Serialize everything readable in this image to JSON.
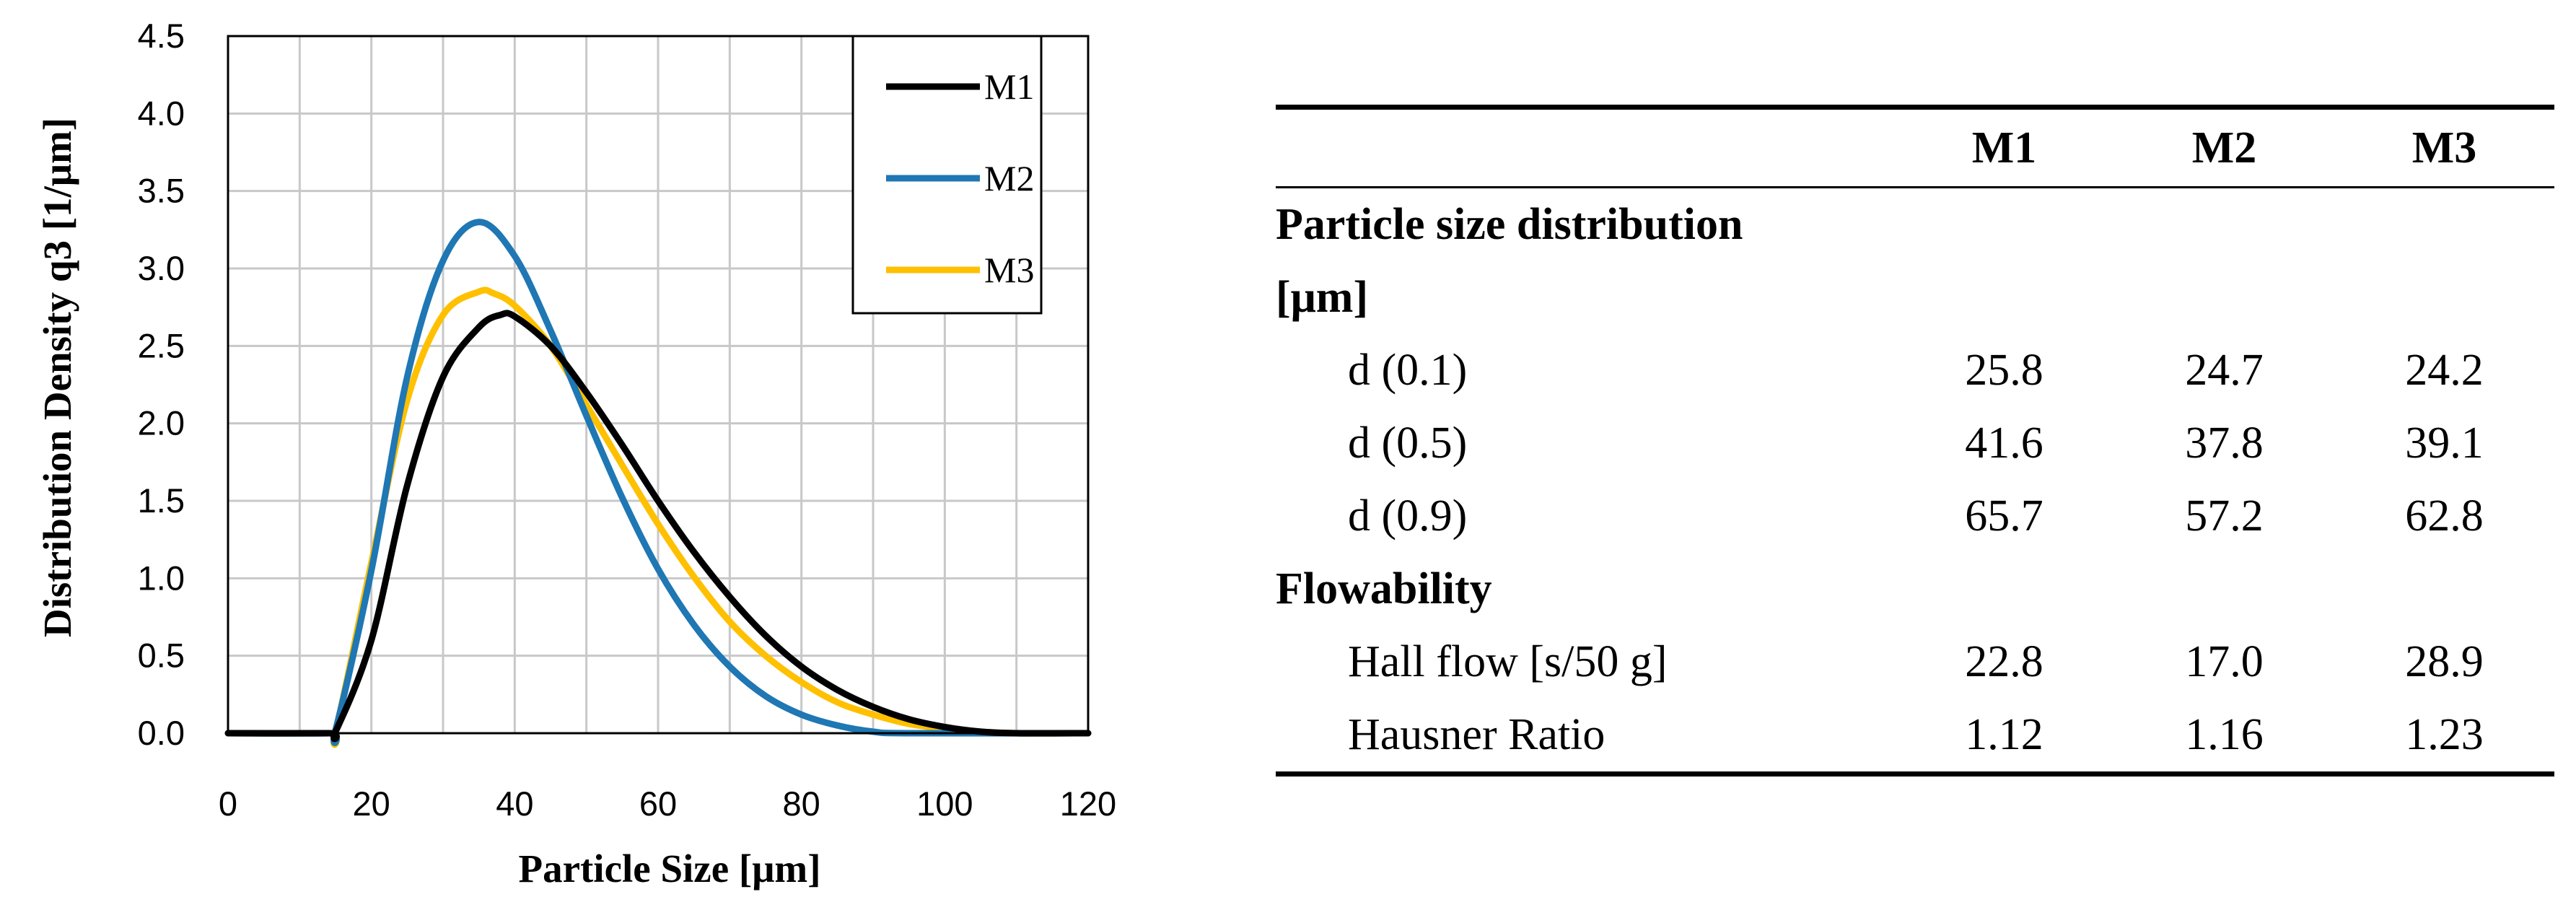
{
  "chart_data": {
    "type": "line",
    "xlabel": "Particle Size [μm]",
    "ylabel": "Distribution Density q3 [1/μm]",
    "xlim": [
      0,
      120
    ],
    "ylim": [
      0,
      4.5
    ],
    "x_ticks": [
      "0",
      "20",
      "40",
      "60",
      "80",
      "100",
      "120"
    ],
    "y_ticks": [
      "0.0",
      "0.5",
      "1.0",
      "1.5",
      "2.0",
      "2.5",
      "3.0",
      "3.5",
      "4.0",
      "4.5"
    ],
    "grid": true,
    "legend_position": "top-right",
    "series": [
      {
        "name": "M1",
        "color": "#000000",
        "x": [
          0,
          14,
          15,
          20,
          25,
          30,
          35,
          38,
          40,
          45,
          50,
          55,
          60,
          65,
          70,
          75,
          80,
          85,
          90,
          95,
          100,
          105,
          110,
          120
        ],
        "y": [
          0,
          0,
          0.01,
          0.6,
          1.6,
          2.3,
          2.62,
          2.7,
          2.69,
          2.5,
          2.2,
          1.86,
          1.5,
          1.17,
          0.88,
          0.63,
          0.43,
          0.28,
          0.17,
          0.09,
          0.04,
          0.01,
          0,
          0
        ]
      },
      {
        "name": "M2",
        "color": "#1f77b4",
        "x": [
          0,
          14,
          15,
          20,
          25,
          30,
          35,
          40,
          45,
          50,
          55,
          60,
          65,
          70,
          75,
          80,
          85,
          90,
          95,
          120
        ],
        "y": [
          0,
          0,
          0.02,
          1.05,
          2.3,
          3.05,
          3.3,
          3.08,
          2.6,
          2.05,
          1.52,
          1.06,
          0.7,
          0.43,
          0.24,
          0.12,
          0.05,
          0.01,
          0,
          0
        ]
      },
      {
        "name": "M3",
        "color": "#ffc000",
        "x": [
          0,
          14,
          15,
          20,
          25,
          30,
          35,
          37,
          40,
          45,
          50,
          55,
          60,
          65,
          70,
          75,
          80,
          85,
          90,
          95,
          100,
          105,
          110,
          120
        ],
        "y": [
          0,
          0,
          0.01,
          1.1,
          2.15,
          2.7,
          2.85,
          2.84,
          2.76,
          2.5,
          2.12,
          1.73,
          1.35,
          1.01,
          0.72,
          0.5,
          0.33,
          0.2,
          0.12,
          0.06,
          0.03,
          0.01,
          0,
          0
        ]
      }
    ]
  },
  "table": {
    "headers": [
      "",
      "M1",
      "M2",
      "M3"
    ],
    "section1": "Particle size distribution",
    "section1_unit": "[μm]",
    "rows_psd": [
      {
        "label": "d (0.1)",
        "values": [
          "25.8",
          "24.7",
          "24.2"
        ]
      },
      {
        "label": "d (0.5)",
        "values": [
          "41.6",
          "37.8",
          "39.1"
        ]
      },
      {
        "label": "d (0.9)",
        "values": [
          "65.7",
          "57.2",
          "62.8"
        ]
      }
    ],
    "section2": "Flowability",
    "rows_flow": [
      {
        "label": "Hall flow [s/50 g]",
        "values": [
          "22.8",
          "17.0",
          "28.9"
        ]
      },
      {
        "label": "Hausner Ratio",
        "values": [
          "1.12",
          "1.16",
          "1.23"
        ]
      }
    ]
  }
}
